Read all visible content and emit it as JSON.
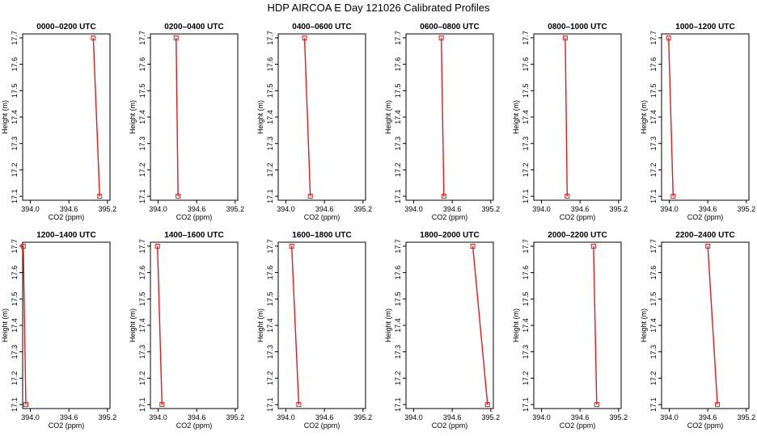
{
  "title": "HDP AIRCOA E  Day 121026  Calibrated Profiles",
  "colors": {
    "line": "#e31a1c",
    "axis": "#000000"
  },
  "chart_data": [
    {
      "type": "line",
      "title": "0000–0200 UTC",
      "xlabel": "CO2 (ppm)",
      "ylabel": "Height (m)",
      "x": [
        395.08,
        394.98
      ],
      "y": [
        17.1,
        17.7
      ]
    },
    {
      "type": "line",
      "title": "0200–0400 UTC",
      "xlabel": "CO2 (ppm)",
      "ylabel": "Height (m)",
      "x": [
        394.31,
        394.28
      ],
      "y": [
        17.1,
        17.7
      ]
    },
    {
      "type": "line",
      "title": "0400–0600 UTC",
      "xlabel": "CO2 (ppm)",
      "ylabel": "Height (m)",
      "x": [
        394.38,
        394.29
      ],
      "y": [
        17.1,
        17.7
      ]
    },
    {
      "type": "line",
      "title": "0600–0800 UTC",
      "xlabel": "CO2 (ppm)",
      "ylabel": "Height (m)",
      "x": [
        394.47,
        394.43
      ],
      "y": [
        17.1,
        17.7
      ]
    },
    {
      "type": "line",
      "title": "0800–1000 UTC",
      "xlabel": "CO2 (ppm)",
      "ylabel": "Height (m)",
      "x": [
        394.4,
        394.37
      ],
      "y": [
        17.1,
        17.7
      ]
    },
    {
      "type": "line",
      "title": "1000–1200 UTC",
      "xlabel": "CO2 (ppm)",
      "ylabel": "Height (m)",
      "x": [
        394.06,
        393.99
      ],
      "y": [
        17.1,
        17.7
      ]
    },
    {
      "type": "line",
      "title": "1200–1400 UTC",
      "xlabel": "CO2 (ppm)",
      "ylabel": "Height (m)",
      "x": [
        393.93,
        393.89
      ],
      "y": [
        17.1,
        17.7
      ]
    },
    {
      "type": "line",
      "title": "1400–1600 UTC",
      "xlabel": "CO2 (ppm)",
      "ylabel": "Height (m)",
      "x": [
        394.06,
        393.99
      ],
      "y": [
        17.1,
        17.7
      ]
    },
    {
      "type": "line",
      "title": "1600–1800 UTC",
      "xlabel": "CO2 (ppm)",
      "ylabel": "Height (m)",
      "x": [
        394.2,
        394.09
      ],
      "y": [
        17.1,
        17.7
      ]
    },
    {
      "type": "line",
      "title": "1800–2000 UTC",
      "xlabel": "CO2 (ppm)",
      "ylabel": "Height (m)",
      "x": [
        395.15,
        394.92
      ],
      "y": [
        17.1,
        17.7
      ]
    },
    {
      "type": "line",
      "title": "2000–2200 UTC",
      "xlabel": "CO2 (ppm)",
      "ylabel": "Height (m)",
      "x": [
        394.86,
        394.81
      ],
      "y": [
        17.1,
        17.7
      ]
    },
    {
      "type": "line",
      "title": "2200–2400 UTC",
      "xlabel": "CO2 (ppm)",
      "ylabel": "Height (m)",
      "x": [
        394.75,
        394.6
      ],
      "y": [
        17.1,
        17.7
      ]
    }
  ],
  "axes": {
    "xlim": [
      393.88,
      395.24
    ],
    "ylim": [
      17.085,
      17.715
    ],
    "xticks": [
      394.0,
      394.6,
      395.2
    ],
    "xtick_labels": [
      "394.0",
      "394.6",
      "395.2"
    ],
    "yticks": [
      17.1,
      17.2,
      17.3,
      17.4,
      17.5,
      17.6,
      17.7
    ],
    "ytick_labels": [
      "17.1",
      "17.2",
      "17.3",
      "17.4",
      "17.5",
      "17.6",
      "17.7"
    ]
  }
}
